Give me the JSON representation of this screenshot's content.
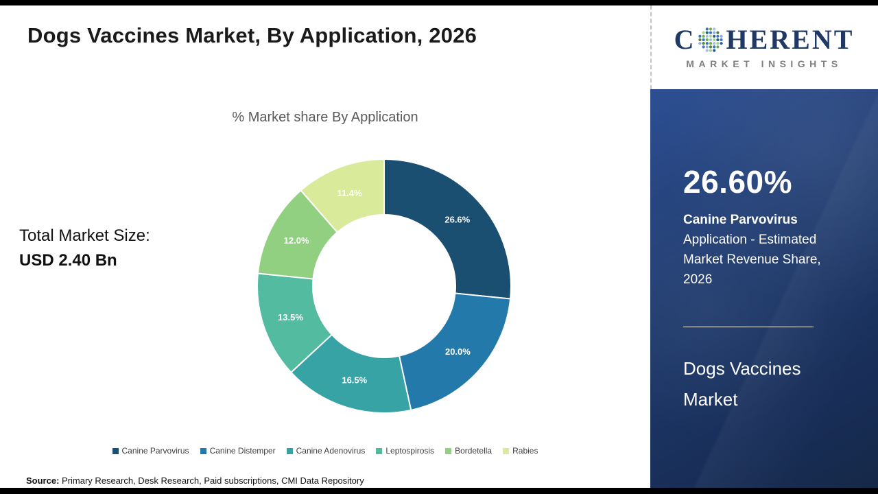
{
  "page": {
    "title": "Dogs Vaccines Market, By Application, 2026",
    "source_label": "Source:",
    "source_text": " Primary Research, Desk Research, Paid subscriptions, CMI Data Repository"
  },
  "logo": {
    "prefix": "C",
    "suffix": "HERENT",
    "subtitle": "MARKET INSIGHTS",
    "o_icon": "dotted-globe",
    "brand_color": "#1f3864"
  },
  "market_size": {
    "label": "Total Market Size:",
    "value": "USD 2.40 Bn"
  },
  "chart_data": {
    "type": "pie",
    "donut": true,
    "title": "% Market share By Application",
    "categories": [
      "Canine Parvovirus",
      "Canine Distemper",
      "Canine Adenovirus",
      "Leptospirosis",
      "Bordetella",
      "Rabies"
    ],
    "values": [
      26.6,
      20.0,
      16.5,
      13.5,
      12.0,
      11.4
    ],
    "labels": [
      "26.6%",
      "20.0%",
      "16.5%",
      "13.5%",
      "12.0%",
      "11.4%"
    ],
    "colors": [
      "#1b4f72",
      "#2379a9",
      "#38a3a5",
      "#52bba0",
      "#90d080",
      "#d9ea9a"
    ],
    "start_angle_deg": 0,
    "direction": "clockwise",
    "legend_position": "bottom"
  },
  "sidebar": {
    "highlight_value": "26.60%",
    "highlight_bold": "Canine Parvovirus",
    "highlight_text": "Application - Estimated Market Revenue Share, 2026",
    "footer_title": "Dogs Vaccines Market",
    "background_color": "#1e3a6e"
  }
}
